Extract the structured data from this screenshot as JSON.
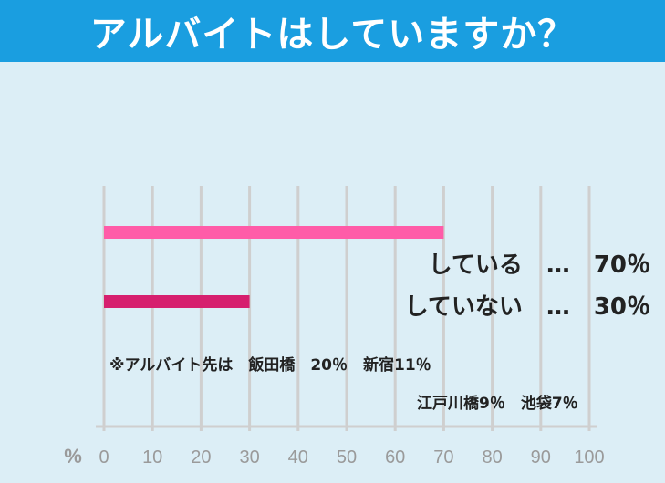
{
  "header": {
    "title": "アルバイトはしていますか？"
  },
  "colors": {
    "header_bg": "#1a9ee0",
    "background": "#dceef6",
    "grid": "#cfcfcf",
    "axis_text": "#9a9a9a",
    "bar_yes": "#ff5ca8",
    "bar_no": "#d61f6e"
  },
  "chart_data": {
    "type": "bar",
    "orientation": "horizontal",
    "title": "アルバイトはしていますか？",
    "categories": [
      "している",
      "していない"
    ],
    "values": [
      70,
      30
    ],
    "unit": "%",
    "xlim": [
      0,
      100
    ],
    "xticks": [
      "0",
      "10",
      "20",
      "30",
      "40",
      "50",
      "60",
      "70",
      "80",
      "90",
      "100"
    ],
    "xlabel": "%",
    "grid": true,
    "labels": [
      "している　…　70％",
      "していない　…　30％"
    ],
    "annotations": [
      "※アルバイト先は　飯田橋　20％　新宿11％",
      "江戸川橋9％　池袋7％"
    ]
  }
}
